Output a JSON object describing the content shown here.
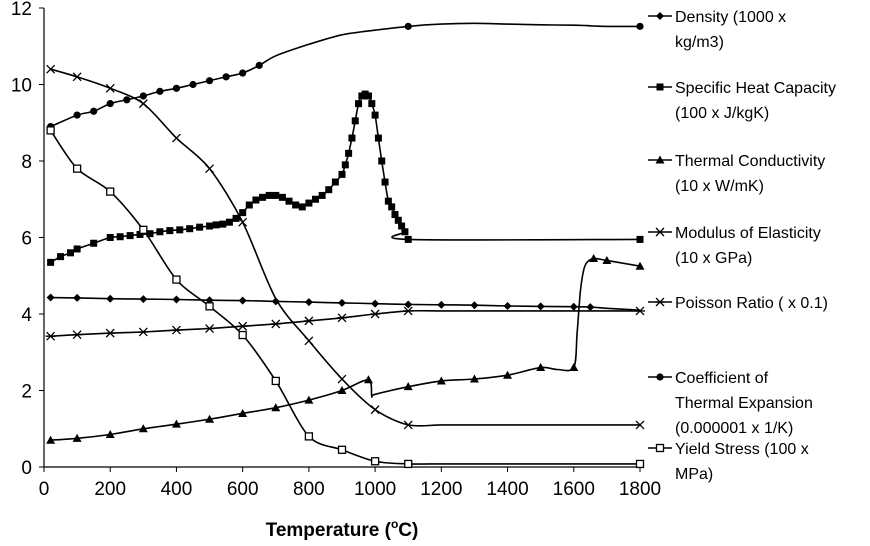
{
  "chart_data": {
    "type": "line",
    "title": "",
    "xlabel": "Temperature (",
    "xlabel_sup": "o",
    "xlabel_unit": "C)",
    "ylabel": "",
    "xlim": [
      0,
      1800
    ],
    "ylim": [
      0,
      12
    ],
    "x_ticks": [
      "0",
      "200",
      "400",
      "600",
      "800",
      "1000",
      "1200",
      "1400",
      "1600",
      "1800"
    ],
    "y_ticks": [
      "0",
      "2",
      "4",
      "6",
      "8",
      "10",
      "12"
    ],
    "legend_position": "right",
    "series": [
      {
        "name": "Density (1000 x kg/m3)",
        "legend_lines": [
          "Density (1000 x",
          "kg/m3)"
        ],
        "marker": "diamond",
        "x": [
          20,
          100,
          200,
          300,
          400,
          500,
          600,
          700,
          800,
          900,
          1000,
          1100,
          1200,
          1300,
          1400,
          1500,
          1600,
          1650,
          1700,
          1800
        ],
        "y": [
          4.43,
          4.42,
          4.4,
          4.39,
          4.38,
          4.36,
          4.35,
          4.33,
          4.31,
          4.29,
          4.27,
          4.25,
          4.24,
          4.23,
          4.21,
          4.2,
          4.19,
          4.18,
          4.15,
          4.1
        ],
        "marked": [
          true,
          true,
          true,
          true,
          true,
          true,
          true,
          true,
          true,
          true,
          true,
          true,
          true,
          true,
          true,
          true,
          true,
          true,
          false,
          false
        ]
      },
      {
        "name": "Specific Heat Capacity (100 x J/kgK)",
        "legend_lines": [
          "Specific Heat Capacity",
          "(100 x J/kgK)"
        ],
        "marker": "square",
        "x": [
          20,
          50,
          80,
          100,
          150,
          200,
          230,
          260,
          290,
          320,
          350,
          380,
          410,
          440,
          470,
          500,
          520,
          540,
          560,
          580,
          600,
          620,
          640,
          660,
          680,
          700,
          720,
          740,
          760,
          780,
          800,
          820,
          840,
          860,
          880,
          900,
          910,
          920,
          930,
          940,
          950,
          960,
          970,
          980,
          990,
          1000,
          1010,
          1020,
          1030,
          1040,
          1050,
          1060,
          1070,
          1080,
          1090,
          1100,
          1800
        ],
        "y": [
          5.35,
          5.5,
          5.6,
          5.7,
          5.85,
          6.0,
          6.02,
          6.05,
          6.08,
          6.1,
          6.15,
          6.18,
          6.2,
          6.23,
          6.27,
          6.3,
          6.33,
          6.35,
          6.4,
          6.5,
          6.65,
          6.85,
          6.98,
          7.05,
          7.1,
          7.1,
          7.05,
          6.95,
          6.85,
          6.8,
          6.9,
          7.0,
          7.1,
          7.25,
          7.45,
          7.65,
          7.9,
          8.2,
          8.6,
          9.05,
          9.5,
          9.7,
          9.75,
          9.7,
          9.5,
          9.2,
          8.6,
          8.0,
          7.45,
          6.95,
          6.8,
          6.6,
          6.45,
          6.3,
          6.15,
          5.95,
          5.95
        ],
        "marked": true
      },
      {
        "name": "Thermal Conductivity (10 x W/mK)",
        "legend_lines": [
          "Thermal Conductivity",
          "(10 x W/mK)"
        ],
        "marker": "triangle",
        "x": [
          20,
          100,
          200,
          300,
          400,
          500,
          600,
          700,
          800,
          900,
          980,
          990,
          1000,
          1100,
          1200,
          1300,
          1400,
          1500,
          1550,
          1600,
          1610,
          1620,
          1630,
          1640,
          1660,
          1700,
          1800
        ],
        "y": [
          0.7,
          0.75,
          0.85,
          1.0,
          1.12,
          1.25,
          1.4,
          1.55,
          1.75,
          2.0,
          2.28,
          1.85,
          1.9,
          2.1,
          2.25,
          2.3,
          2.4,
          2.6,
          2.55,
          2.6,
          3.5,
          4.6,
          5.15,
          5.35,
          5.45,
          5.4,
          5.25
        ],
        "marked": [
          true,
          true,
          true,
          true,
          true,
          true,
          true,
          true,
          true,
          true,
          true,
          false,
          false,
          true,
          true,
          true,
          true,
          true,
          false,
          true,
          false,
          false,
          false,
          false,
          true,
          true,
          true
        ]
      },
      {
        "name": "Modulus of Elasticity (10 x GPa)",
        "legend_lines": [
          "Modulus of Elasticity",
          "(10 x GPa)"
        ],
        "marker": "x",
        "x": [
          20,
          100,
          200,
          300,
          400,
          500,
          600,
          700,
          800,
          900,
          1000,
          1100,
          1200,
          1300,
          1400,
          1500,
          1600,
          1700,
          1800
        ],
        "y": [
          10.4,
          10.2,
          9.9,
          9.5,
          8.6,
          7.8,
          6.4,
          4.4,
          3.3,
          2.3,
          1.5,
          1.1,
          1.1,
          1.1,
          1.1,
          1.1,
          1.1,
          1.1,
          1.1
        ],
        "marked": [
          true,
          true,
          true,
          true,
          true,
          true,
          true,
          false,
          true,
          true,
          true,
          true,
          false,
          false,
          false,
          false,
          false,
          false,
          true
        ]
      },
      {
        "name": "Poisson Ratio ( x 0.1)",
        "legend_lines": [
          "Poisson Ratio ( x 0.1)"
        ],
        "marker": "star",
        "x": [
          20,
          100,
          200,
          300,
          400,
          500,
          600,
          700,
          800,
          900,
          1000,
          1100,
          1200,
          1300,
          1400,
          1500,
          1600,
          1700,
          1800
        ],
        "y": [
          3.42,
          3.46,
          3.5,
          3.53,
          3.58,
          3.62,
          3.68,
          3.74,
          3.82,
          3.9,
          4.0,
          4.08,
          4.08,
          4.08,
          4.08,
          4.08,
          4.08,
          4.08,
          4.08
        ],
        "marked": [
          true,
          true,
          true,
          true,
          true,
          true,
          true,
          true,
          true,
          true,
          true,
          true,
          false,
          false,
          false,
          false,
          false,
          false,
          true
        ]
      },
      {
        "name": "Coefficient of Thermal Expansion (0.000001 x 1/K)",
        "legend_lines": [
          "Coefficient of",
          "Thermal Expansion",
          "(0.000001 x 1/K)"
        ],
        "marker": "circle",
        "x": [
          20,
          100,
          150,
          200,
          250,
          300,
          350,
          400,
          450,
          500,
          550,
          600,
          650,
          700,
          800,
          900,
          1000,
          1100,
          1200,
          1300,
          1400,
          1500,
          1600,
          1640,
          1660,
          1700,
          1800
        ],
        "y": [
          8.9,
          9.2,
          9.3,
          9.5,
          9.6,
          9.7,
          9.82,
          9.9,
          10.0,
          10.1,
          10.2,
          10.3,
          10.5,
          10.75,
          11.05,
          11.3,
          11.42,
          11.52,
          11.58,
          11.6,
          11.58,
          11.56,
          11.55,
          11.54,
          11.53,
          11.52,
          11.52
        ],
        "marked": [
          true,
          true,
          true,
          true,
          true,
          true,
          true,
          true,
          true,
          true,
          true,
          true,
          true,
          false,
          false,
          false,
          false,
          true,
          false,
          false,
          false,
          false,
          false,
          false,
          false,
          false,
          true
        ]
      },
      {
        "name": "Yield Stress (100 x MPa)",
        "legend_lines": [
          "Yield Stress (100 x",
          "MPa)"
        ],
        "marker": "square-open",
        "x": [
          20,
          100,
          200,
          300,
          400,
          500,
          600,
          700,
          800,
          900,
          1000,
          1100,
          1200,
          1300,
          1400,
          1500,
          1600,
          1700,
          1800
        ],
        "y": [
          8.8,
          7.8,
          7.2,
          6.2,
          4.9,
          4.2,
          3.45,
          2.25,
          0.8,
          0.45,
          0.15,
          0.08,
          0.08,
          0.08,
          0.08,
          0.08,
          0.08,
          0.08,
          0.08
        ],
        "marked": [
          true,
          true,
          true,
          true,
          true,
          true,
          true,
          true,
          true,
          true,
          true,
          true,
          false,
          false,
          false,
          false,
          false,
          false,
          true
        ]
      }
    ],
    "colors": {
      "line": "#000000",
      "axis": "#000000",
      "marker_fill": "#000000",
      "marker_open": "#ffffff"
    }
  }
}
